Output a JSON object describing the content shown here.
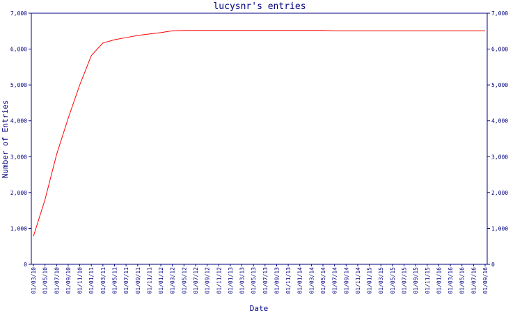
{
  "chart_data": {
    "type": "line",
    "title": "lucysnr's entries",
    "x_label": "Date",
    "y_label": "Number of Entries",
    "categories": [
      "01/03/10",
      "01/05/10",
      "01/07/10",
      "01/09/10",
      "01/11/10",
      "01/01/11",
      "01/03/11",
      "01/05/11",
      "01/07/11",
      "01/09/11",
      "01/11/11",
      "01/01/12",
      "01/03/12",
      "01/05/12",
      "01/07/12",
      "01/09/12",
      "01/11/12",
      "01/01/13",
      "01/03/13",
      "01/05/13",
      "01/07/13",
      "01/09/13",
      "01/11/13",
      "01/01/14",
      "01/03/14",
      "01/05/14",
      "01/07/14",
      "01/09/14",
      "01/11/14",
      "01/01/15",
      "01/03/15",
      "01/05/15",
      "01/07/15",
      "01/09/15",
      "01/11/15",
      "01/01/16",
      "01/03/16",
      "01/05/16",
      "01/07/16",
      "01/09/16"
    ],
    "series": [
      {
        "name": "Entries",
        "color": "#ff0000",
        "values": [
          780,
          1800,
          3060,
          4070,
          5000,
          5820,
          6170,
          6260,
          6320,
          6380,
          6420,
          6460,
          6510,
          6520,
          6520,
          6520,
          6520,
          6520,
          6520,
          6520,
          6520,
          6520,
          6520,
          6520,
          6520,
          6520,
          6510,
          6510,
          6510,
          6510,
          6510,
          6510,
          6510,
          6510,
          6510,
          6510,
          6510,
          6510,
          6510,
          6510
        ]
      }
    ],
    "ylim": [
      0,
      7000
    ],
    "yticks": [
      0,
      {
        "value": 1000,
        "label": "1,000"
      },
      {
        "value": 2000,
        "label": "2,000"
      },
      {
        "value": 3000,
        "label": "3,000"
      },
      {
        "value": 4000,
        "label": "4,000"
      },
      {
        "value": 5000,
        "label": "5,000"
      },
      {
        "value": 6000,
        "label": "6,000"
      },
      {
        "value": 7000,
        "label": "7,000"
      }
    ]
  }
}
